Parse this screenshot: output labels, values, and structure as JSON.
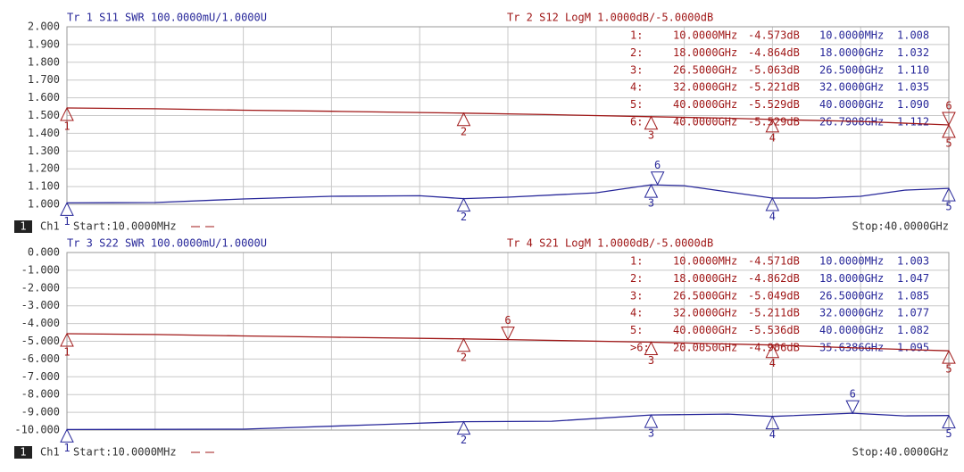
{
  "chart_data": [
    {
      "type": "line",
      "xlim": [
        0.01,
        40
      ],
      "ylim": [
        1.0,
        2.0
      ],
      "y2lim": [
        -10,
        0
      ],
      "grid": true,
      "yticks": [
        {
          "value": 2.0,
          "label": "2.000"
        },
        {
          "value": 1.9,
          "label": "1.900"
        },
        {
          "value": 1.8,
          "label": "1.800"
        },
        {
          "value": 1.7,
          "label": "1.700"
        },
        {
          "value": 1.6,
          "label": "1.600"
        },
        {
          "value": 1.5,
          "label": "1.500"
        },
        {
          "value": 1.4,
          "label": "1.400"
        },
        {
          "value": 1.3,
          "label": "1.300"
        },
        {
          "value": 1.2,
          "label": "1.200"
        },
        {
          "value": 1.1,
          "label": "1.100"
        },
        {
          "value": 1.0,
          "label": "1.000"
        }
      ],
      "channel_number": "1",
      "channel_label": "Ch1",
      "start_label": "Start:10.0000MHz",
      "stop_label": "Stop:40.0000GHz",
      "series": [
        {
          "name": "Tr 1  S11 SWR 100.0000mU/1.0000U",
          "color": "#28289a",
          "axis": "y",
          "x": [
            0.01,
            4,
            8,
            12,
            16,
            18,
            20,
            24,
            26.5,
            28,
            30,
            32,
            34,
            36,
            38,
            40
          ],
          "values": [
            1.008,
            1.01,
            1.03,
            1.045,
            1.048,
            1.032,
            1.04,
            1.065,
            1.11,
            1.105,
            1.07,
            1.035,
            1.035,
            1.045,
            1.08,
            1.09
          ],
          "markers": [
            {
              "label": "1",
              "x": 0.01,
              "value": 1.008
            },
            {
              "label": "2",
              "x": 18,
              "value": 1.032
            },
            {
              "label": "3",
              "x": 26.5,
              "value": 1.11
            },
            {
              "label": "4",
              "x": 32,
              "value": 1.035
            },
            {
              "label": "5",
              "x": 40,
              "value": 1.09
            },
            {
              "label": "6",
              "x": 26.7908,
              "value": 1.112
            }
          ],
          "marker_table": [
            [
              "10.0000MHz",
              "1.008"
            ],
            [
              "18.0000GHz",
              "1.032"
            ],
            [
              "26.5000GHz",
              "1.110"
            ],
            [
              "32.0000GHz",
              "1.035"
            ],
            [
              "40.0000GHz",
              "1.090"
            ],
            [
              "26.7908GHz",
              "1.112"
            ]
          ]
        },
        {
          "name": "Tr 2  S12 LogM 1.0000dB/-5.0000dB",
          "color": "#a01818",
          "axis": "y2",
          "x": [
            0.01,
            4,
            8,
            12,
            16,
            18,
            22,
            26.5,
            30,
            32,
            36,
            40
          ],
          "values": [
            -4.573,
            -4.62,
            -4.7,
            -4.76,
            -4.83,
            -4.864,
            -4.95,
            -5.063,
            -5.15,
            -5.221,
            -5.33,
            -5.529
          ],
          "markers": [
            {
              "label": "1",
              "x": 0.01,
              "value": -4.573
            },
            {
              "label": "2",
              "x": 18,
              "value": -4.864
            },
            {
              "label": "3",
              "x": 26.5,
              "value": -5.063
            },
            {
              "label": "4",
              "x": 32,
              "value": -5.221
            },
            {
              "label": "5",
              "x": 40,
              "value": -5.529
            },
            {
              "label": "6",
              "x": 40,
              "value": -5.529
            }
          ],
          "marker_table": [
            [
              "1:",
              "10.0000MHz",
              "-4.573dB"
            ],
            [
              "2:",
              "18.0000GHz",
              "-4.864dB"
            ],
            [
              "3:",
              "26.5000GHz",
              "-5.063dB"
            ],
            [
              "4:",
              "32.0000GHz",
              "-5.221dB"
            ],
            [
              "5:",
              "40.0000GHz",
              "-5.529dB"
            ],
            [
              "6:",
              "40.0000GHz",
              "-5.529dB"
            ]
          ]
        }
      ]
    },
    {
      "type": "line",
      "xlim": [
        0.01,
        40
      ],
      "ylim": [
        -10,
        0
      ],
      "y2lim": [
        1.0,
        2.0
      ],
      "grid": true,
      "yticks": [
        {
          "value": 0,
          "label": "0.000"
        },
        {
          "value": -1,
          "label": "-1.000"
        },
        {
          "value": -2,
          "label": "-2.000"
        },
        {
          "value": -3,
          "label": "-3.000"
        },
        {
          "value": -4,
          "label": "-4.000"
        },
        {
          "value": -5,
          "label": "-5.000"
        },
        {
          "value": -6,
          "label": "-6.000"
        },
        {
          "value": -7,
          "label": "-7.000"
        },
        {
          "value": -8,
          "label": "-8.000"
        },
        {
          "value": -9,
          "label": "-9.000"
        },
        {
          "value": -10,
          "label": "-10.000"
        }
      ],
      "channel_number": "1",
      "channel_label": "Ch1",
      "start_label": "Start:10.0000MHz",
      "stop_label": "Stop:40.0000GHz",
      "series": [
        {
          "name": "Tr 3  S22 SWR 100.0000mU/1.0000U",
          "color": "#28289a",
          "axis": "y2",
          "x": [
            0.01,
            8,
            14,
            18,
            22,
            26.5,
            30,
            32,
            35.6386,
            38,
            40
          ],
          "values": [
            1.003,
            1.005,
            1.03,
            1.047,
            1.05,
            1.085,
            1.09,
            1.077,
            1.095,
            1.08,
            1.082
          ],
          "markers": [
            {
              "label": "1",
              "x": 0.01,
              "value": 1.003
            },
            {
              "label": "2",
              "x": 18,
              "value": 1.047
            },
            {
              "label": "3",
              "x": 26.5,
              "value": 1.085
            },
            {
              "label": "4",
              "x": 32,
              "value": 1.077
            },
            {
              "label": "5",
              "x": 40,
              "value": 1.082
            },
            {
              "label": "6",
              "x": 35.6386,
              "value": 1.095
            }
          ],
          "marker_table": [
            [
              "10.0000MHz",
              "1.003"
            ],
            [
              "18.0000GHz",
              "1.047"
            ],
            [
              "26.5000GHz",
              "1.085"
            ],
            [
              "32.0000GHz",
              "1.077"
            ],
            [
              "40.0000GHz",
              "1.082"
            ],
            [
              "35.6386GHz",
              "1.095"
            ]
          ]
        },
        {
          "name": "Tr 4  S21 LogM 1.0000dB/-5.0000dB",
          "color": "#a01818",
          "axis": "y",
          "x": [
            0.01,
            4,
            8,
            12,
            18,
            20.005,
            26.5,
            32,
            36,
            40
          ],
          "values": [
            -4.571,
            -4.62,
            -4.7,
            -4.77,
            -4.862,
            -4.906,
            -5.049,
            -5.211,
            -5.38,
            -5.536
          ],
          "markers": [
            {
              "label": "1",
              "x": 0.01,
              "value": -4.571
            },
            {
              "label": "2",
              "x": 18,
              "value": -4.862
            },
            {
              "label": "3",
              "x": 26.5,
              "value": -5.049
            },
            {
              "label": "4",
              "x": 32,
              "value": -5.211
            },
            {
              "label": "5",
              "x": 40,
              "value": -5.536
            },
            {
              "label": "6",
              "x": 20.005,
              "value": -4.906
            }
          ],
          "marker_table": [
            [
              "1:",
              "10.0000MHz",
              "-4.571dB"
            ],
            [
              "2:",
              "18.0000GHz",
              "-4.862dB"
            ],
            [
              "3:",
              "26.5000GHz",
              "-5.049dB"
            ],
            [
              "4:",
              "32.0000GHz",
              "-5.211dB"
            ],
            [
              "5:",
              "40.0000GHz",
              "-5.536dB"
            ],
            [
              ">6:",
              "20.0050GHz",
              "-4.906dB"
            ]
          ]
        }
      ]
    }
  ]
}
